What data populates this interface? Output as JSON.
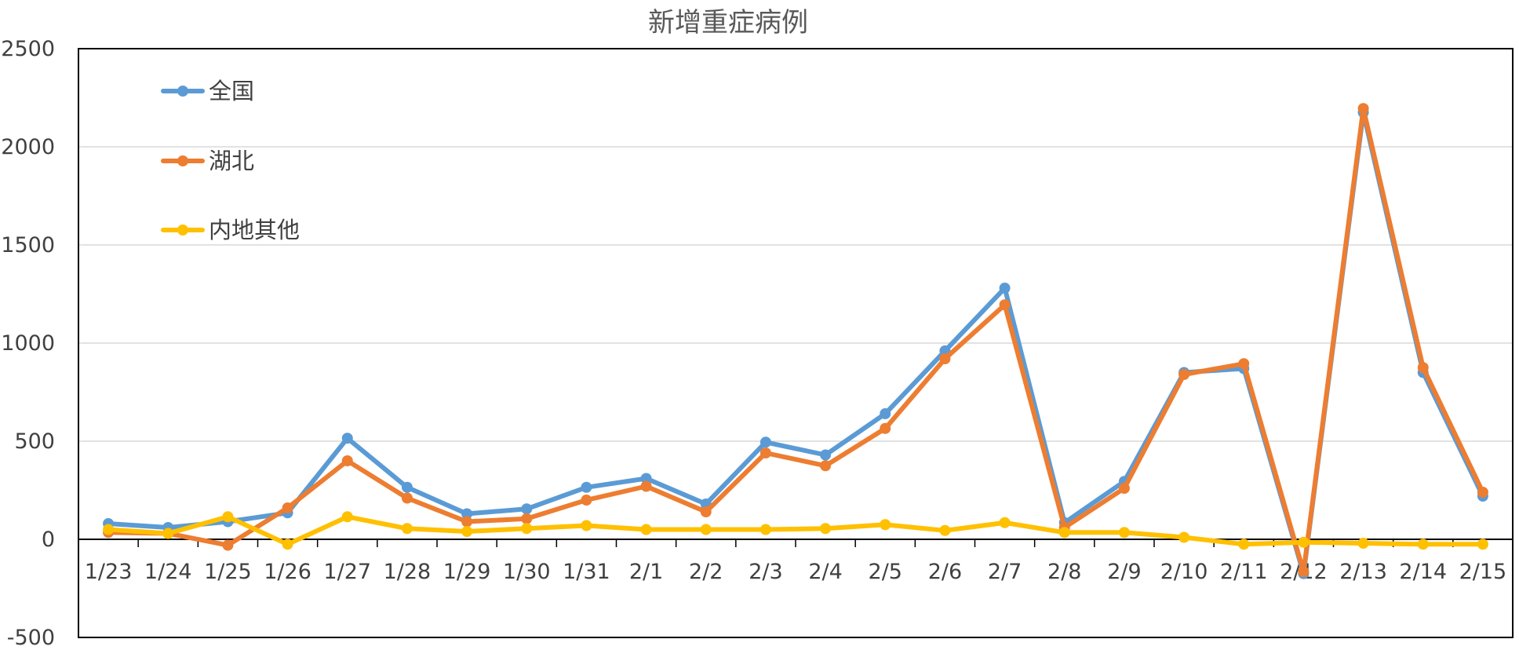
{
  "chart_data": {
    "type": "line",
    "title": "新增重症病例",
    "xlabel": "",
    "ylabel": "",
    "categories": [
      "1/23",
      "1/24",
      "1/25",
      "1/26",
      "1/27",
      "1/28",
      "1/29",
      "1/30",
      "1/31",
      "2/1",
      "2/2",
      "2/3",
      "2/4",
      "2/5",
      "2/6",
      "2/7",
      "2/8",
      "2/9",
      "2/10",
      "2/11",
      "2/12",
      "2/13",
      "2/14",
      "2/15"
    ],
    "ylim": [
      -500,
      2500
    ],
    "yticks": [
      "2500",
      "2000",
      "1500",
      "1000",
      "500",
      "0",
      "-500"
    ],
    "ytick_values": [
      2500,
      2000,
      1500,
      1000,
      500,
      0,
      -500
    ],
    "grid": true,
    "legend_position": "top-left",
    "series": [
      {
        "name": "全国",
        "color": "#5B9BD5",
        "values": [
          80,
          60,
          90,
          135,
          515,
          265,
          130,
          155,
          265,
          310,
          180,
          495,
          430,
          640,
          960,
          1280,
          85,
          295,
          850,
          870,
          -175,
          2175,
          850,
          220
        ]
      },
      {
        "name": "湖北",
        "color": "#ED7D31",
        "values": [
          35,
          30,
          -30,
          160,
          400,
          210,
          90,
          105,
          200,
          270,
          140,
          440,
          375,
          565,
          920,
          1195,
          60,
          260,
          840,
          895,
          -165,
          2195,
          875,
          240
        ]
      },
      {
        "name": "内地其他",
        "color": "#FFC000",
        "values": [
          50,
          30,
          115,
          -25,
          115,
          55,
          40,
          55,
          70,
          50,
          50,
          50,
          55,
          75,
          45,
          85,
          35,
          35,
          10,
          -25,
          -15,
          -20,
          -25,
          -25
        ]
      }
    ]
  }
}
